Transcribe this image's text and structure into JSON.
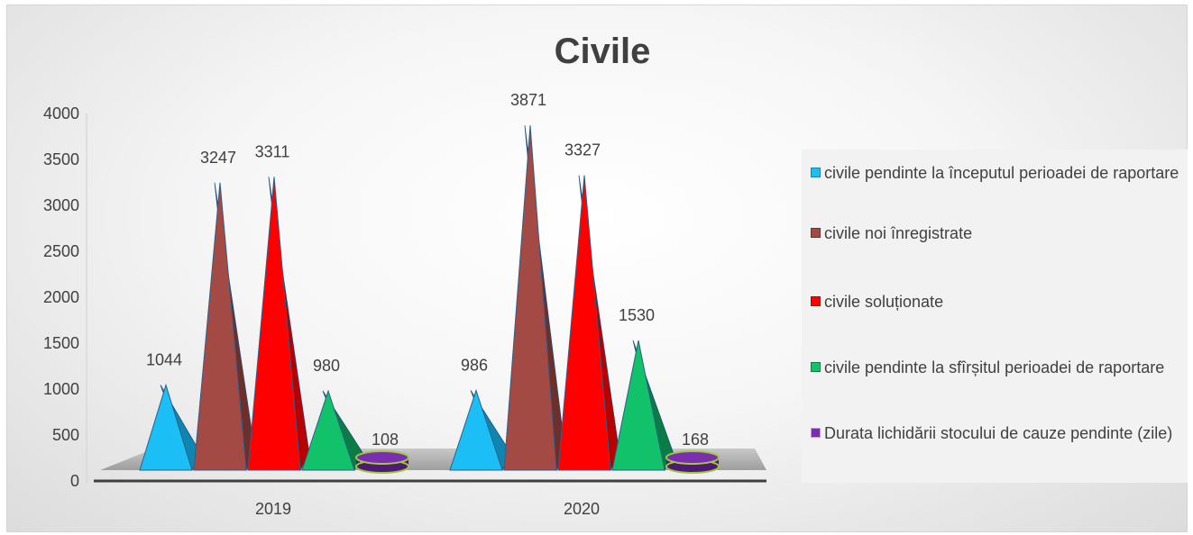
{
  "chart_data": {
    "type": "bar",
    "shape": "3d-cone",
    "title": "Civile",
    "categories": [
      "2019",
      "2020"
    ],
    "ylim": [
      0,
      4000
    ],
    "yticks": [
      0,
      500,
      1000,
      1500,
      2000,
      2500,
      3000,
      3500,
      4000
    ],
    "series": [
      {
        "name": "civile pendinte la începutul perioadei de raportare",
        "values": [
          1044,
          986
        ],
        "color": "#1CBFF5",
        "shade": "#0E86B0"
      },
      {
        "name": "civile noi înregistrate",
        "values": [
          3247,
          3871
        ],
        "color": "#A44A44",
        "shade": "#6E2E2A"
      },
      {
        "name": "civile soluționate",
        "values": [
          3311,
          3327
        ],
        "color": "#FF0000",
        "shade": "#B80000"
      },
      {
        "name": "civile pendinte la sfîrșitul perioadei de raportare",
        "values": [
          980,
          1530
        ],
        "color": "#12C26A",
        "shade": "#0A7D45"
      },
      {
        "name": "Durata lichidării stocului de cauze pendinte (zile)",
        "values": [
          108,
          168
        ],
        "color": "#7B2FB0",
        "shade": "#4E1A73",
        "edge": "#9BCB3C"
      }
    ],
    "legend_position": "right",
    "grid": false
  }
}
